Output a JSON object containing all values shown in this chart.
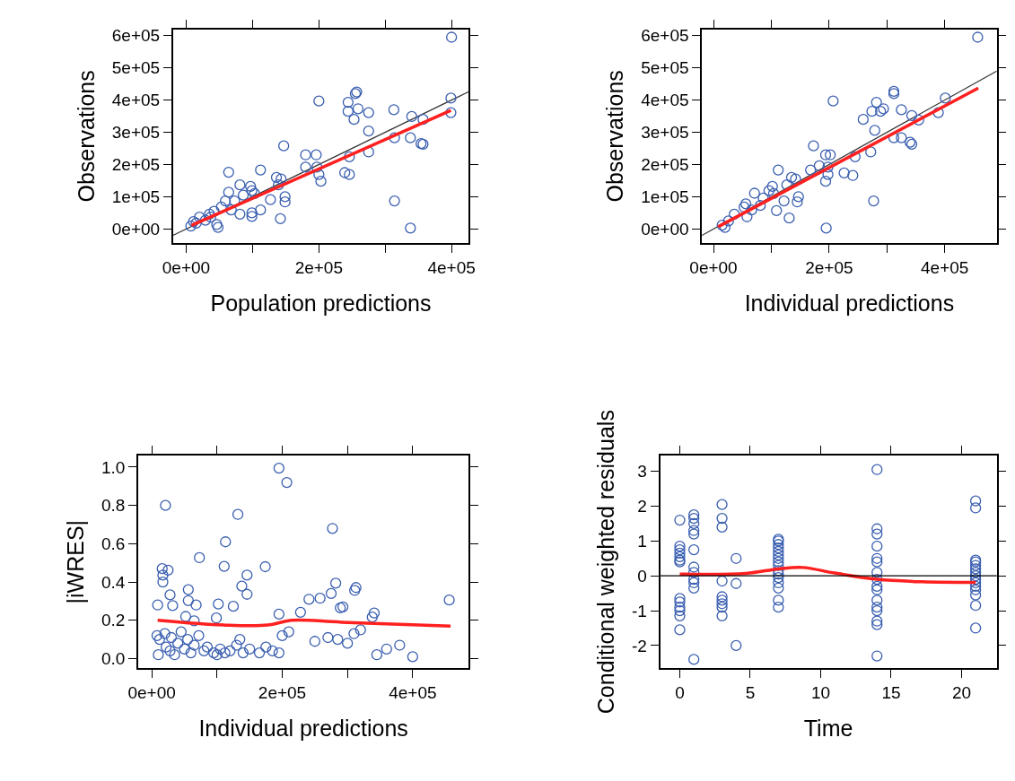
{
  "chart_data": [
    {
      "type": "scatter",
      "xlabel": "Population predictions",
      "ylabel": "Observations",
      "xlim": [
        -20000,
        426000
      ],
      "ylim": [
        -44000,
        620000
      ],
      "xticks": [
        {
          "value": 0,
          "label": "0e+00"
        },
        {
          "value": 100000,
          "label": null
        },
        {
          "value": 200000,
          "label": "2e+05"
        },
        {
          "value": 300000,
          "label": null
        },
        {
          "value": 400000,
          "label": "4e+05"
        }
      ],
      "yticks": [
        {
          "value": 0,
          "label": "0e+00"
        },
        {
          "value": 100000,
          "label": "1e+05"
        },
        {
          "value": 200000,
          "label": "2e+05"
        },
        {
          "value": 300000,
          "label": "3e+05"
        },
        {
          "value": 400000,
          "label": "4e+05"
        },
        {
          "value": 500000,
          "label": "5e+05"
        },
        {
          "value": 600000,
          "label": "6e+05"
        }
      ],
      "grid": false,
      "legend": false,
      "marker": "circle",
      "series": [
        {
          "type": "line",
          "marker": "none",
          "color": "#333333",
          "x": [
            -20000,
            426000
          ],
          "values": [
            -20000,
            426000
          ]
        },
        {
          "color": "#3a5fb0",
          "x": [
            400000,
            399000,
            399000,
            357000,
            354000,
            357000,
            340000,
            338000,
            313000,
            314000,
            314000,
            338000,
            257000,
            255000,
            244000,
            244000,
            259000,
            275000,
            253000,
            275000,
            275000,
            246000,
            239000,
            246000,
            200000,
            147000,
            180000,
            196000,
            180000,
            197000,
            200000,
            203000,
            136000,
            143000,
            139000,
            149000,
            149000,
            127000,
            142000,
            112000,
            64000,
            81000,
            97000,
            99000,
            64000,
            86000,
            103000,
            59000,
            73000,
            53000,
            68000,
            81000,
            99000,
            112000,
            99000,
            46000,
            48000,
            37000,
            29000,
            7000,
            15000,
            20000,
            11000,
            35000,
            42000
          ],
          "values": [
            595000,
            406000,
            361000,
            340000,
            265000,
            263000,
            349000,
            283000,
            370000,
            283000,
            87000,
            3000,
            425000,
            420000,
            393000,
            365000,
            373000,
            361000,
            340000,
            304000,
            239000,
            224000,
            175000,
            169000,
            397000,
            258000,
            230000,
            230000,
            192000,
            192000,
            169000,
            148000,
            160000,
            155000,
            137000,
            100000,
            84000,
            91000,
            32000,
            183000,
            176000,
            137000,
            132000,
            119000,
            114000,
            105000,
            110000,
            87000,
            87000,
            68000,
            59000,
            46000,
            50000,
            59000,
            39000,
            14000,
            5000,
            37000,
            27000,
            9000,
            18000,
            37000,
            23000,
            46000,
            55000
          ]
        },
        {
          "type": "line",
          "marker": "none",
          "color": "#ff2020",
          "x": [
            8000,
            399000
          ],
          "values": [
            11000,
            368000
          ]
        }
      ]
    },
    {
      "type": "scatter",
      "xlabel": "Individual predictions",
      "ylabel": "Observations",
      "xlim": [
        -20000,
        490000
      ],
      "ylim": [
        -44000,
        620000
      ],
      "xticks": [
        {
          "value": 0,
          "label": "0e+00"
        },
        {
          "value": 100000,
          "label": null
        },
        {
          "value": 200000,
          "label": "2e+05"
        },
        {
          "value": 300000,
          "label": null
        },
        {
          "value": 400000,
          "label": "4e+05"
        }
      ],
      "yticks": [
        {
          "value": 0,
          "label": "0e+00"
        },
        {
          "value": 100000,
          "label": "1e+05"
        },
        {
          "value": 200000,
          "label": "2e+05"
        },
        {
          "value": 300000,
          "label": "3e+05"
        },
        {
          "value": 400000,
          "label": "4e+05"
        },
        {
          "value": 500000,
          "label": "5e+05"
        },
        {
          "value": 600000,
          "label": "6e+05"
        }
      ],
      "grid": false,
      "legend": false,
      "marker": "circle",
      "series": [
        {
          "type": "line",
          "marker": "none",
          "color": "#333333",
          "x": [
            -20000,
            490000
          ],
          "values": [
            -20000,
            490000
          ]
        },
        {
          "color": "#3a5fb0",
          "x": [
            457000,
            401000,
            389000,
            312000,
            312000,
            282000,
            274000,
            289000,
            294000,
            325000,
            343000,
            355000,
            259000,
            279000,
            312000,
            325000,
            340000,
            343000,
            272000,
            245000,
            207000,
            173000,
            194000,
            202000,
            168000,
            183000,
            198000,
            198000,
            194000,
            226000,
            241000,
            277000,
            195000,
            112000,
            135000,
            142000,
            127000,
            147000,
            145000,
            102000,
            96000,
            104000,
            122000,
            71000,
            86000,
            109000,
            131000,
            56000,
            53000,
            66000,
            81000,
            58000,
            36000,
            26000,
            15000,
            20000
          ],
          "values": [
            595000,
            406000,
            361000,
            427000,
            420000,
            393000,
            365000,
            365000,
            373000,
            370000,
            352000,
            338000,
            340000,
            306000,
            283000,
            283000,
            269000,
            263000,
            239000,
            224000,
            397000,
            258000,
            230000,
            230000,
            183000,
            196000,
            192000,
            169000,
            148000,
            174000,
            166000,
            87000,
            3000,
            183000,
            160000,
            155000,
            137000,
            100000,
            84000,
            132000,
            119000,
            110000,
            87000,
            111000,
            96000,
            57000,
            34000,
            78000,
            68000,
            59000,
            73000,
            38000,
            46000,
            25000,
            12000,
            5000
          ]
        },
        {
          "type": "line",
          "marker": "none",
          "color": "#ff2020",
          "x": [
            8000,
            458000
          ],
          "values": [
            7000,
            437000
          ]
        }
      ]
    },
    {
      "type": "scatter",
      "xlabel": "Individual predictions",
      "ylabel": "|iWRES|",
      "xlim": [
        -21000,
        486000
      ],
      "ylim": [
        -0.05,
        1.06
      ],
      "xticks": [
        {
          "value": 0,
          "label": "0e+00"
        },
        {
          "value": 100000,
          "label": null
        },
        {
          "value": 200000,
          "label": "2e+05"
        },
        {
          "value": 300000,
          "label": null
        },
        {
          "value": 400000,
          "label": "4e+05"
        }
      ],
      "yticks": [
        {
          "value": 0,
          "label": "0.0"
        },
        0.2,
        0.4,
        0.6,
        0.8,
        {
          "value": 1,
          "label": "1.0"
        }
      ],
      "grid": false,
      "legend": false,
      "marker": "circle",
      "series": [
        {
          "color": "#3a5fb0",
          "x": [
            195000,
            207000,
            21000,
            132000,
            277000,
            113000,
            73000,
            111000,
            174000,
            16000,
            25000,
            17000,
            17000,
            146000,
            138000,
            146000,
            282000,
            313000,
            311000,
            275000,
            241000,
            258000,
            289000,
            293000,
            456000,
            228000,
            341000,
            338000,
            195000,
            28000,
            56000,
            9000,
            32000,
            56000,
            68000,
            102000,
            125000,
            99000,
            52000,
            65000,
            8000,
            10000,
            12000,
            20000,
            22000,
            28000,
            30000,
            35000,
            40000,
            45000,
            50000,
            55000,
            60000,
            65000,
            72000,
            80000,
            85000,
            95000,
            100000,
            105000,
            112000,
            120000,
            130000,
            135000,
            140000,
            150000,
            165000,
            175000,
            185000,
            195000,
            200000,
            210000,
            250000,
            270000,
            285000,
            300000,
            310000,
            320000,
            345000,
            360000,
            380000,
            400000
          ],
          "values": [
            0.995,
            0.92,
            0.8,
            0.753,
            0.68,
            0.61,
            0.527,
            0.482,
            0.48,
            0.47,
            0.462,
            0.436,
            0.4,
            0.436,
            0.379,
            0.336,
            0.394,
            0.371,
            0.356,
            0.34,
            0.31,
            0.315,
            0.265,
            0.27,
            0.306,
            0.242,
            0.238,
            0.217,
            0.232,
            0.333,
            0.36,
            0.28,
            0.277,
            0.303,
            0.28,
            0.285,
            0.273,
            0.212,
            0.22,
            0.197,
            0.12,
            0.02,
            0.1,
            0.13,
            0.06,
            0.04,
            0.11,
            0.02,
            0.08,
            0.14,
            0.05,
            0.1,
            0.03,
            0.07,
            0.12,
            0.04,
            0.06,
            0.03,
            0.02,
            0.05,
            0.03,
            0.04,
            0.07,
            0.1,
            0.03,
            0.05,
            0.03,
            0.06,
            0.04,
            0.03,
            0.12,
            0.14,
            0.09,
            0.11,
            0.1,
            0.08,
            0.13,
            0.15,
            0.02,
            0.05,
            0.07,
            0.01
          ]
        },
        {
          "type": "line",
          "marker": "none",
          "color": "#ff2020",
          "x": [
            9000,
            110000,
            178000,
            214000,
            291000,
            458000
          ],
          "values": [
            0.2,
            0.175,
            0.175,
            0.2,
            0.19,
            0.17
          ]
        }
      ]
    },
    {
      "type": "scatter",
      "xlabel": "Time",
      "ylabel": "Conditional weighted residuals",
      "xlim": [
        -1.4,
        22.5
      ],
      "ylim": [
        -2.65,
        3.45
      ],
      "xticks": [
        0,
        5,
        10,
        15,
        20
      ],
      "yticks": [
        -2,
        -1,
        0,
        1,
        2,
        3
      ],
      "grid": false,
      "legend": false,
      "marker": "circle",
      "ref_lines": [
        {
          "axis": "y",
          "value": 0,
          "color": "#000000"
        }
      ],
      "series": [
        {
          "color": "#3a5fb0",
          "x": [
            0,
            0,
            0,
            0,
            0,
            0,
            0,
            0,
            0,
            0,
            0,
            0,
            0,
            1,
            1,
            1,
            1,
            1,
            1,
            1,
            1,
            1,
            1,
            1,
            1,
            3,
            3,
            3,
            3,
            3,
            3,
            3,
            3,
            3,
            4,
            4,
            4,
            7,
            7,
            7,
            7,
            7,
            7,
            7,
            7,
            7,
            7,
            7,
            7,
            7,
            7,
            7,
            7,
            14,
            14,
            14,
            14,
            14,
            14,
            14,
            14,
            14,
            14,
            14,
            14,
            14,
            14,
            14,
            14,
            21,
            21,
            21,
            21,
            21,
            21,
            21,
            21,
            21,
            21,
            21,
            21,
            21,
            21,
            21
          ],
          "values": [
            1.6,
            0.85,
            0.75,
            0.65,
            0.55,
            0.45,
            0.4,
            -0.65,
            -0.75,
            -0.9,
            -1.0,
            -1.15,
            -1.55,
            1.75,
            1.65,
            1.5,
            1.3,
            1.2,
            0.75,
            0.25,
            0.1,
            -0.1,
            -0.2,
            -0.35,
            -2.4,
            2.05,
            1.65,
            1.4,
            -0.15,
            -0.6,
            -0.7,
            -0.8,
            -0.9,
            -1.15,
            0.5,
            -0.22,
            -2.0,
            1.05,
            1.0,
            0.9,
            0.8,
            0.7,
            0.6,
            0.5,
            0.4,
            0.3,
            0.15,
            0.05,
            -0.05,
            -0.2,
            -0.35,
            -0.7,
            -0.9,
            3.05,
            1.35,
            1.2,
            0.85,
            0.5,
            0.4,
            0.1,
            -0.1,
            -0.3,
            -0.4,
            -0.7,
            -0.9,
            -1.0,
            -1.3,
            -1.4,
            -2.3,
            2.15,
            1.95,
            0.45,
            0.4,
            0.3,
            0.2,
            0.1,
            0,
            -0.1,
            -0.2,
            -0.3,
            -0.4,
            -0.55,
            -0.85,
            -1.5
          ]
        },
        {
          "type": "line",
          "marker": "none",
          "color": "#ff2020",
          "x": [
            0,
            4.7,
            7,
            8.7,
            11,
            14,
            17.2,
            21
          ],
          "values": [
            0.05,
            0.07,
            0.2,
            0.24,
            0.08,
            -0.1,
            -0.17,
            -0.19
          ]
        }
      ]
    }
  ]
}
